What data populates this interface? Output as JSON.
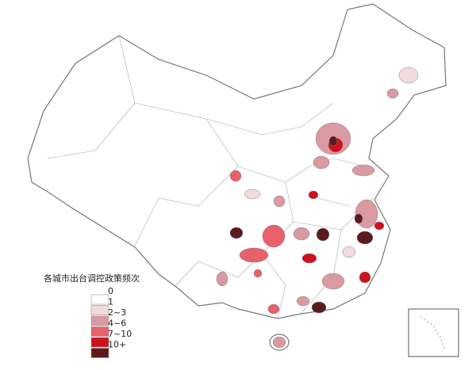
{
  "legend": {
    "title": "各城市出台调控政策频次",
    "items": [
      {
        "label": "0",
        "color": "#ffffff"
      },
      {
        "label": "1",
        "color": "#f2dadd"
      },
      {
        "label": "2~3",
        "color": "#d99aa2"
      },
      {
        "label": "4~6",
        "color": "#e8606a"
      },
      {
        "label": "7~10",
        "color": "#d0101c"
      },
      {
        "label": "10+",
        "color": "#5a1a1e"
      }
    ]
  }
}
